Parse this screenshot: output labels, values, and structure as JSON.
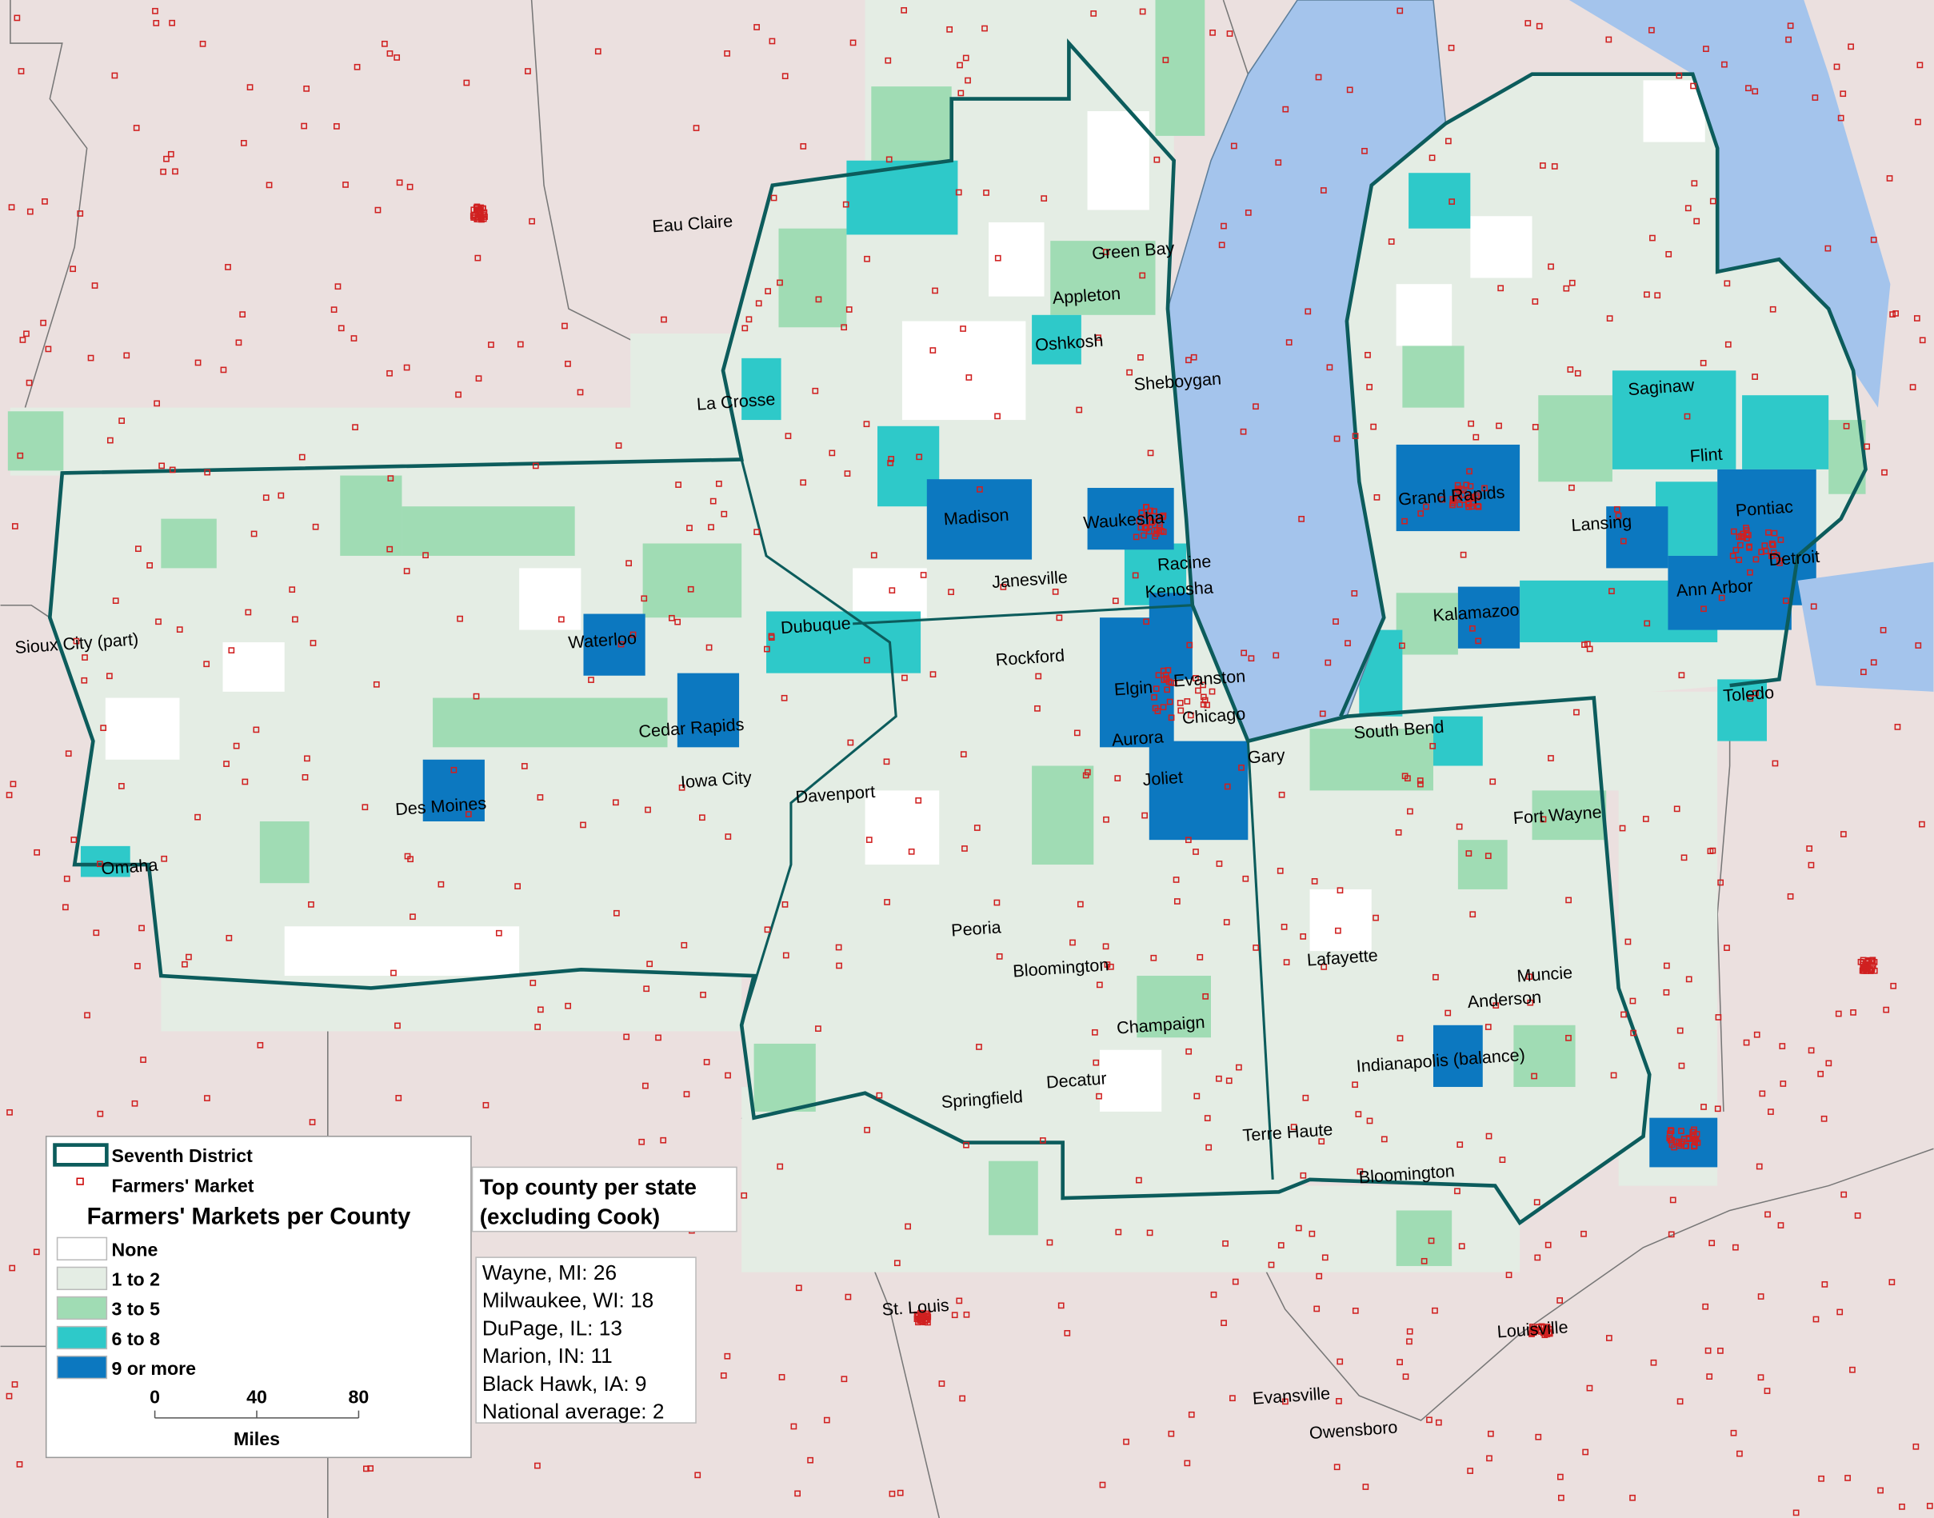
{
  "legend": {
    "district": "Seventh District",
    "market": "Farmers' Market",
    "title": "Farmers' Markets per County",
    "classes": [
      {
        "label": "None",
        "color": "#ffffff"
      },
      {
        "label": "1 to 2",
        "color": "#e4ede4"
      },
      {
        "label": "3 to 5",
        "color": "#a0dcb4"
      },
      {
        "label": "6 to 8",
        "color": "#2ec9c9"
      },
      {
        "label": "9 or more",
        "color": "#0c78c0"
      }
    ],
    "scale": {
      "ticks": [
        0,
        40,
        80
      ],
      "unit": "Miles"
    }
  },
  "top_counties": {
    "title": [
      "Top county per state",
      "(excluding Cook)"
    ],
    "items": [
      "Wayne, MI: 26",
      "Milwaukee, WI: 18",
      "DuPage, IL: 13",
      "Marion, IN: 11",
      "Black Hawk, IA: 9",
      "National average: 2"
    ]
  },
  "cities": [
    "Eau Claire",
    "Green Bay",
    "Appleton",
    "Oshkosh",
    "Sheboygan",
    "La Crosse",
    "Madison",
    "Waukesha",
    "Racine",
    "Kenosha",
    "Janesville",
    "Sioux City (part)",
    "Waterloo",
    "Dubuque",
    "Rockford",
    "Elgin",
    "Evanston",
    "Chicago",
    "Aurora",
    "Joliet",
    "Gary",
    "South Bend",
    "Cedar Rapids",
    "Iowa City",
    "Davenport",
    "Des Moines",
    "Omaha",
    "Saginaw",
    "Flint",
    "Grand Rapids",
    "Lansing",
    "Pontiac",
    "Ann Arbor",
    "Detroit",
    "Kalamazoo",
    "Toledo",
    "Fort Wayne",
    "Peoria",
    "Bloomington",
    "Champaign",
    "Decatur",
    "Springfield",
    "Lafayette",
    "Muncie",
    "Anderson",
    "Indianapolis (balance)",
    "Terre Haute",
    "Bloomington",
    "St. Louis",
    "Louisville",
    "Evansville",
    "Owensboro"
  ]
}
